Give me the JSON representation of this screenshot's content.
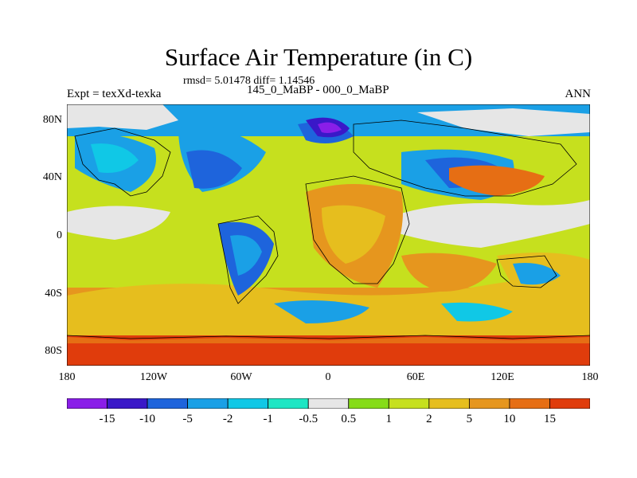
{
  "title": "Surface Air Temperature (in C)",
  "stats": "rmsd= 5.01478  diff= 1.14546",
  "subtitle": "145_0_MaBP - 000_0_MaBP",
  "expt_label": "Expt = texXd-texka",
  "season": "ANN",
  "lat_labels": [
    "80N",
    "40N",
    "0",
    "40S",
    "80S"
  ],
  "lon_labels": [
    "180",
    "120W",
    "60W",
    "0",
    "60E",
    "120E",
    "180"
  ],
  "colorbar": {
    "labels": [
      "-15",
      "-10",
      "-5",
      "-2",
      "-1",
      "-0.5",
      "0.5",
      "1",
      "2",
      "5",
      "10",
      "15"
    ],
    "colors": [
      "#8a1ee8",
      "#3a18c8",
      "#1e64dc",
      "#1aa0e6",
      "#10c8e6",
      "#1ee6c4",
      "#e6e6e6",
      "#86dc18",
      "#c6e01e",
      "#e6be1e",
      "#e6961e",
      "#e66e14",
      "#e03c0c"
    ]
  }
}
